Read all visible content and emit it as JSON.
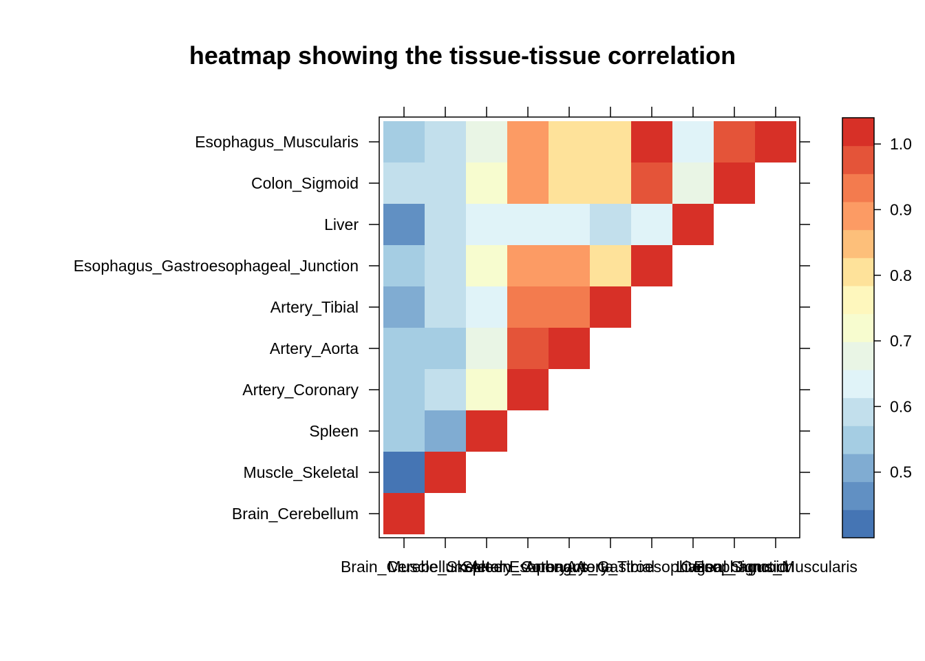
{
  "chart_data": {
    "type": "heatmap",
    "title": "heatmap showing the tissue-tissue correlation",
    "xlabel": "",
    "ylabel": "",
    "x_labels": [
      "Brain_Cerebellum",
      "Muscle_Skeletal",
      "Spleen",
      "Artery_Coronary",
      "Artery_Aorta",
      "Artery_Tibial",
      "Esophagus_Gastroesophageal_Junction",
      "Liver",
      "Colon_Sigmoid",
      "Esophagus_Muscularis"
    ],
    "y_labels": [
      "Brain_Cerebellum",
      "Muscle_Skeletal",
      "Spleen",
      "Artery_Coronary",
      "Artery_Aorta",
      "Artery_Tibial",
      "Esophagus_Gastroesophageal_Junction",
      "Liver",
      "Colon_Sigmoid",
      "Esophagus_Muscularis"
    ],
    "values": [
      [
        1.0,
        null,
        null,
        null,
        null,
        null,
        null,
        null,
        null,
        null
      ],
      [
        0.43,
        1.0,
        null,
        null,
        null,
        null,
        null,
        null,
        null,
        null
      ],
      [
        0.54,
        0.51,
        1.0,
        null,
        null,
        null,
        null,
        null,
        null,
        null
      ],
      [
        0.54,
        0.58,
        0.72,
        1.0,
        null,
        null,
        null,
        null,
        null,
        null
      ],
      [
        0.54,
        0.54,
        0.67,
        0.98,
        1.0,
        null,
        null,
        null,
        null,
        null
      ],
      [
        0.51,
        0.58,
        0.62,
        0.95,
        0.95,
        1.0,
        null,
        null,
        null,
        null
      ],
      [
        0.54,
        0.58,
        0.72,
        0.87,
        0.87,
        0.82,
        1.0,
        null,
        null,
        null
      ],
      [
        0.46,
        0.58,
        0.62,
        0.62,
        0.62,
        0.58,
        0.62,
        1.0,
        null,
        null
      ],
      [
        0.58,
        0.58,
        0.72,
        0.87,
        0.82,
        0.82,
        0.98,
        0.67,
        1.0,
        null
      ],
      [
        0.54,
        0.58,
        0.67,
        0.87,
        0.82,
        0.82,
        1.0,
        0.62,
        0.98,
        1.0
      ]
    ],
    "colorbar": {
      "range": [
        0.4,
        1.04
      ],
      "ticks": [
        0.5,
        0.6,
        0.7,
        0.8,
        0.9,
        1.0
      ],
      "tick_labels": [
        "0.5",
        "0.6",
        "0.7",
        "0.8",
        "0.9",
        "1.0"
      ],
      "colors": [
        "#4575b4",
        "#6190c3",
        "#80acd2",
        "#a5cde3",
        "#c2dfec",
        "#e0f3f8",
        "#e9f5e5",
        "#f7fccf",
        "#fef7bd",
        "#fee29a",
        "#fdbf7a",
        "#fc9b64",
        "#f37b4e",
        "#e45439",
        "#d73027"
      ]
    }
  }
}
